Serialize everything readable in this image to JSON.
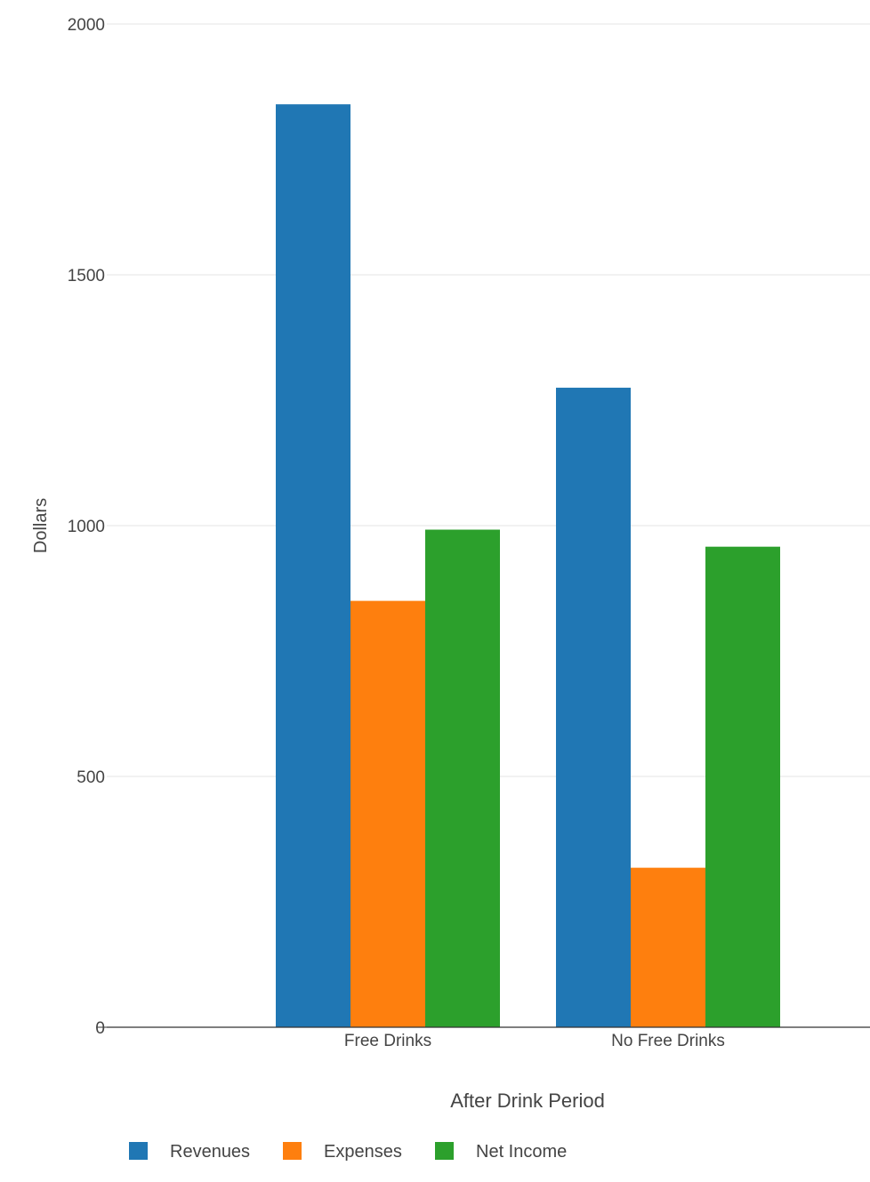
{
  "chart_data": {
    "type": "bar",
    "title": "",
    "xlabel": "After Drink Period",
    "ylabel": "Dollars",
    "categories": [
      "Free Drinks",
      "No Free Drinks"
    ],
    "ylim": [
      0,
      2000
    ],
    "yticks": [
      0,
      500,
      1000,
      1500,
      2000
    ],
    "grid": true,
    "legend_position": "bottom-left",
    "series": [
      {
        "name": "Revenues",
        "color": "#2077b4",
        "values": [
          1840,
          1275
        ]
      },
      {
        "name": "Expenses",
        "color": "#fe7f0e",
        "values": [
          850,
          318
        ]
      },
      {
        "name": "Net Income",
        "color": "#2ca02c",
        "values": [
          992,
          958
        ]
      }
    ]
  }
}
